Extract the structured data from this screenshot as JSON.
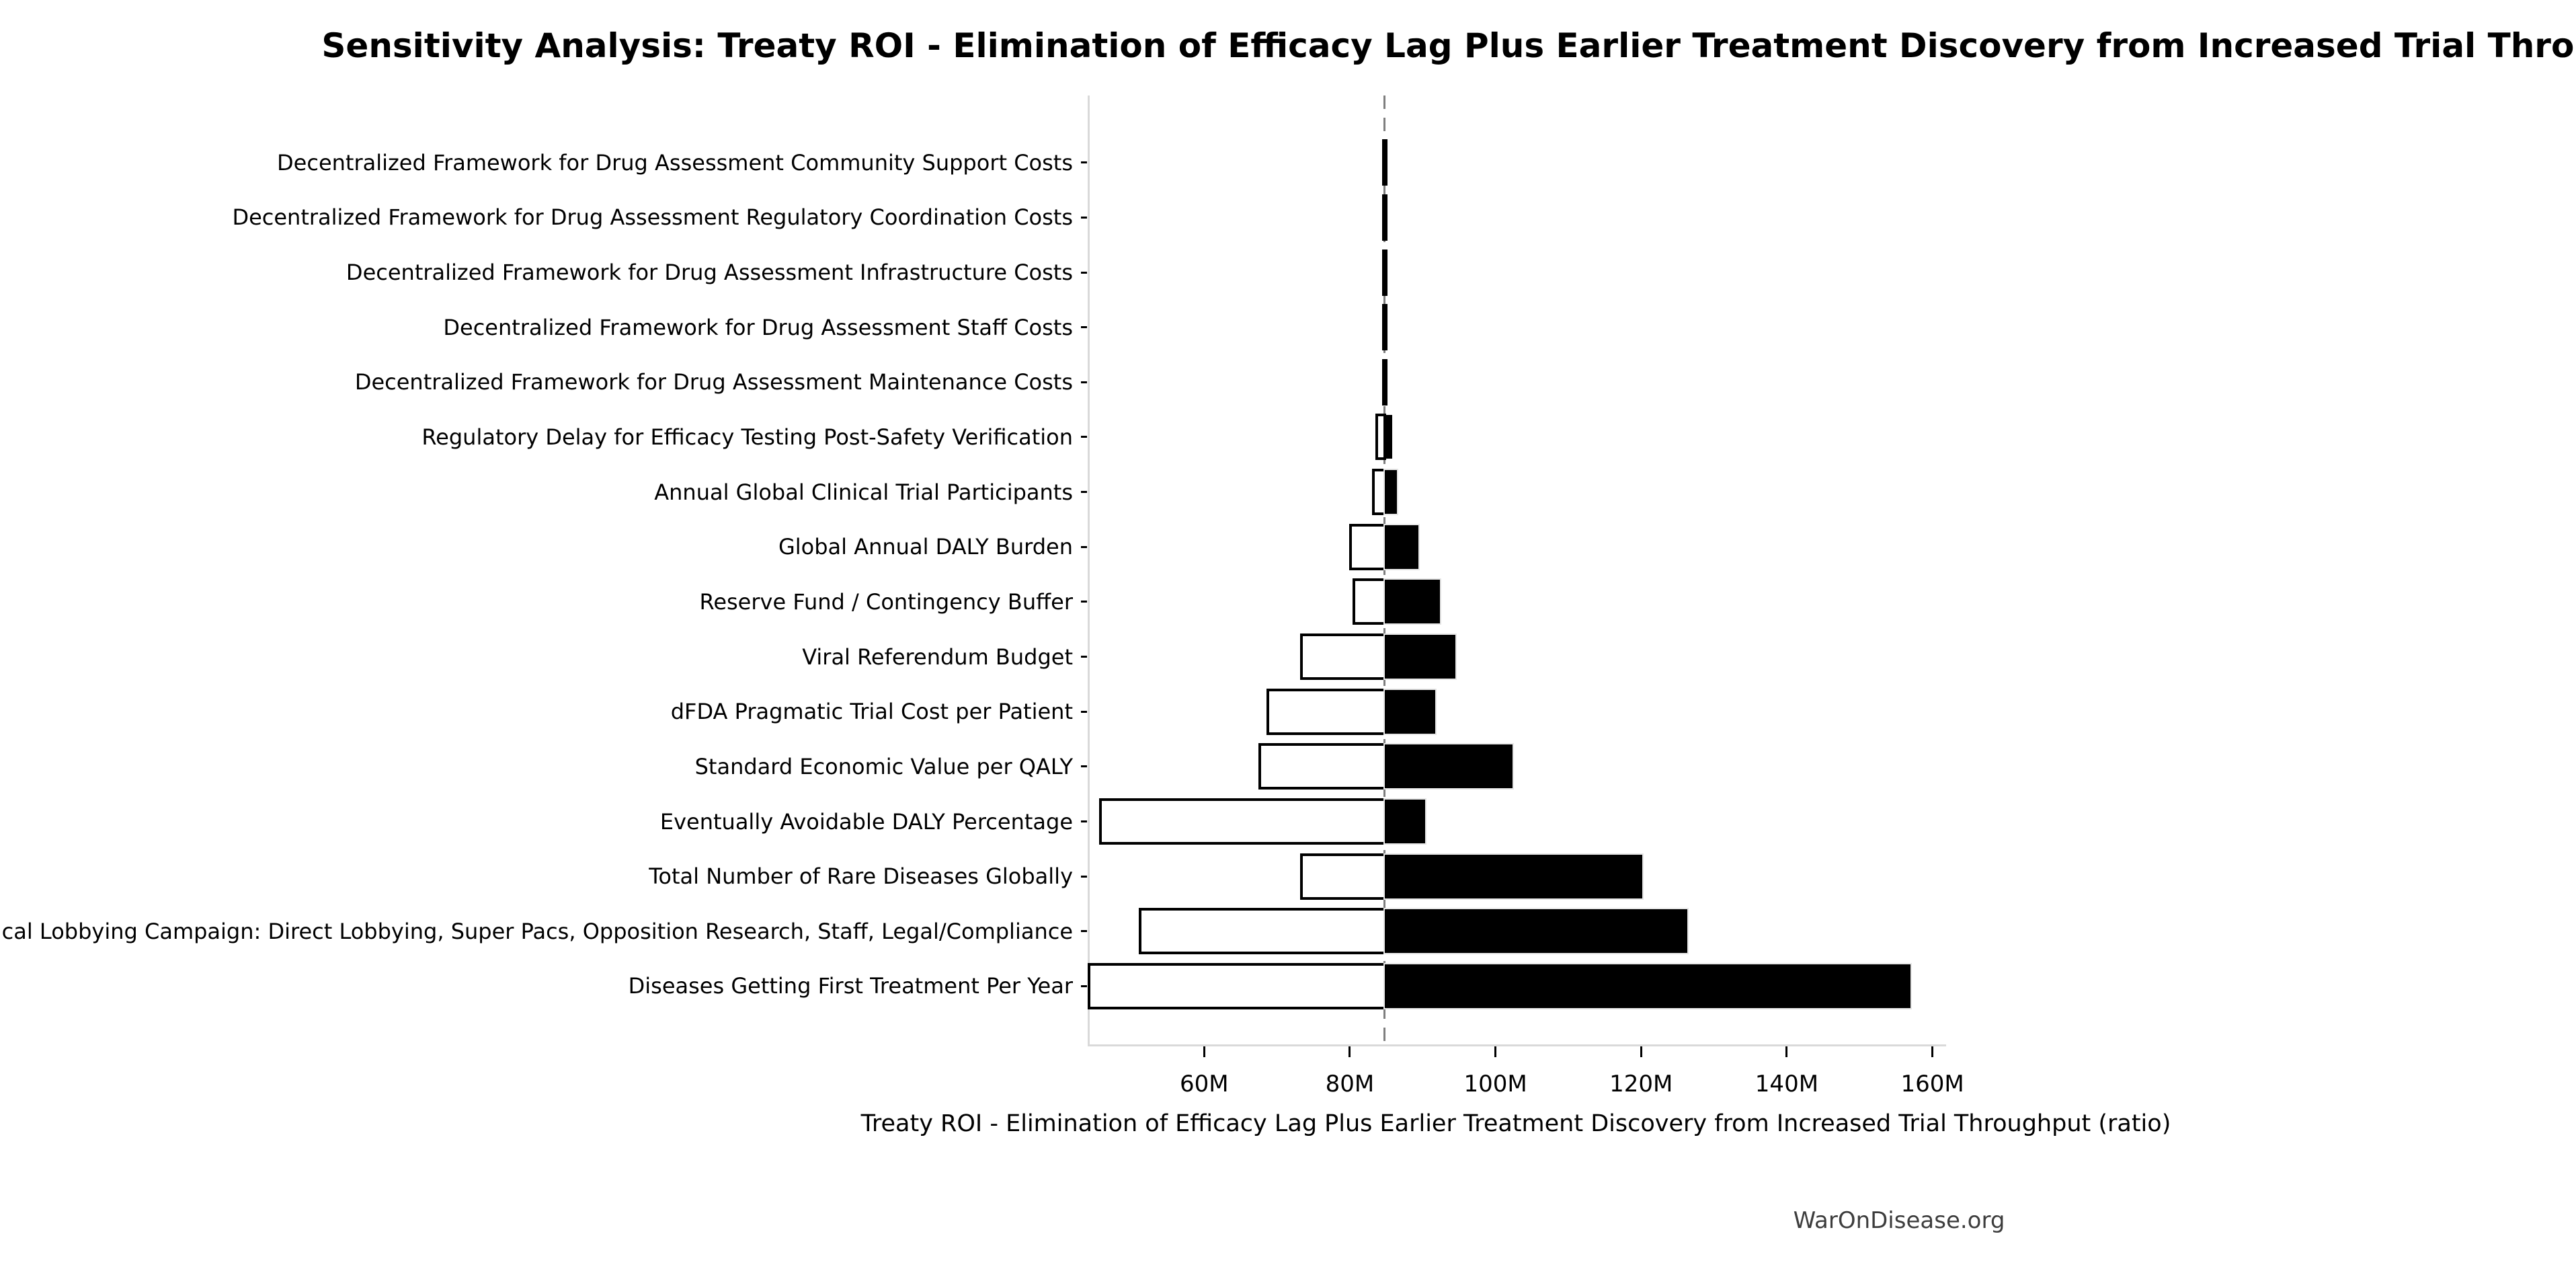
{
  "footer": {
    "text": "WarOnDisease.org"
  },
  "colors": {
    "bar_high_fill": "#000000",
    "bar_low_fill": "#ffffff",
    "bar_edge": "#000000",
    "spine": "#d9d9d9",
    "baseline_dash": "#7f7f7f",
    "footer_text": "#3d3d3d"
  },
  "chart_data": {
    "type": "bar",
    "subtype": "tornado-horizontal",
    "title": "Sensitivity Analysis: Treaty ROI - Elimination of Efficacy Lag Plus Earlier Treatment Discovery from Increased Trial Throughput",
    "xlabel": "Treaty ROI - Elimination of Efficacy Lag Plus Earlier Treatment Discovery from Increased Trial Throughput (ratio)",
    "ylabel": "",
    "units": "M",
    "baseline": 84.8,
    "xlim": [
      44.0,
      161.7
    ],
    "grid": false,
    "legend": "none",
    "x_ticks": [
      {
        "value": 60,
        "label": "60M"
      },
      {
        "value": 80,
        "label": "80M"
      },
      {
        "value": 100,
        "label": "100M"
      },
      {
        "value": 120,
        "label": "120M"
      },
      {
        "value": 140,
        "label": "140M"
      },
      {
        "value": 160,
        "label": "160M"
      }
    ],
    "rows": [
      {
        "label": "Decentralized Framework for Drug Assessment Community Support Costs",
        "low": 84.6,
        "high": 85.0
      },
      {
        "label": "Decentralized Framework for Drug Assessment Regulatory Coordination Costs",
        "low": 84.6,
        "high": 85.0
      },
      {
        "label": "Decentralized Framework for Drug Assessment Infrastructure Costs",
        "low": 84.6,
        "high": 85.0
      },
      {
        "label": "Decentralized Framework for Drug Assessment Staff Costs",
        "low": 84.6,
        "high": 85.0
      },
      {
        "label": "Decentralized Framework for Drug Assessment Maintenance Costs",
        "low": 84.65,
        "high": 84.95
      },
      {
        "label": "Regulatory Delay for Efficacy Testing Post-Safety Verification",
        "low": 83.7,
        "high": 85.8
      },
      {
        "label": "Annual Global Clinical Trial Participants",
        "low": 83.2,
        "high": 86.5
      },
      {
        "label": "Global Annual DALY Burden",
        "low": 80.1,
        "high": 89.4
      },
      {
        "label": "Reserve Fund / Contingency Buffer",
        "low": 80.6,
        "high": 92.4
      },
      {
        "label": "Viral Referendum Budget",
        "low": 73.4,
        "high": 94.5
      },
      {
        "label": "dFDA Pragmatic Trial Cost per Patient",
        "low": 68.7,
        "high": 91.7
      },
      {
        "label": "Standard Economic Value per QALY",
        "low": 67.6,
        "high": 102.3
      },
      {
        "label": "Eventually Avoidable DALY Percentage",
        "low": 45.8,
        "high": 90.3
      },
      {
        "label": "Total Number of Rare Diseases Globally",
        "low": 73.4,
        "high": 120.2
      },
      {
        "label": "Political Lobbying Campaign: Direct Lobbying, Super Pacs, Opposition Research, Staff, Legal/Compliance",
        "low": 51.2,
        "high": 126.3
      },
      {
        "label": "Diseases Getting First Treatment Per Year",
        "low": 44.2,
        "high": 157.0
      }
    ]
  }
}
